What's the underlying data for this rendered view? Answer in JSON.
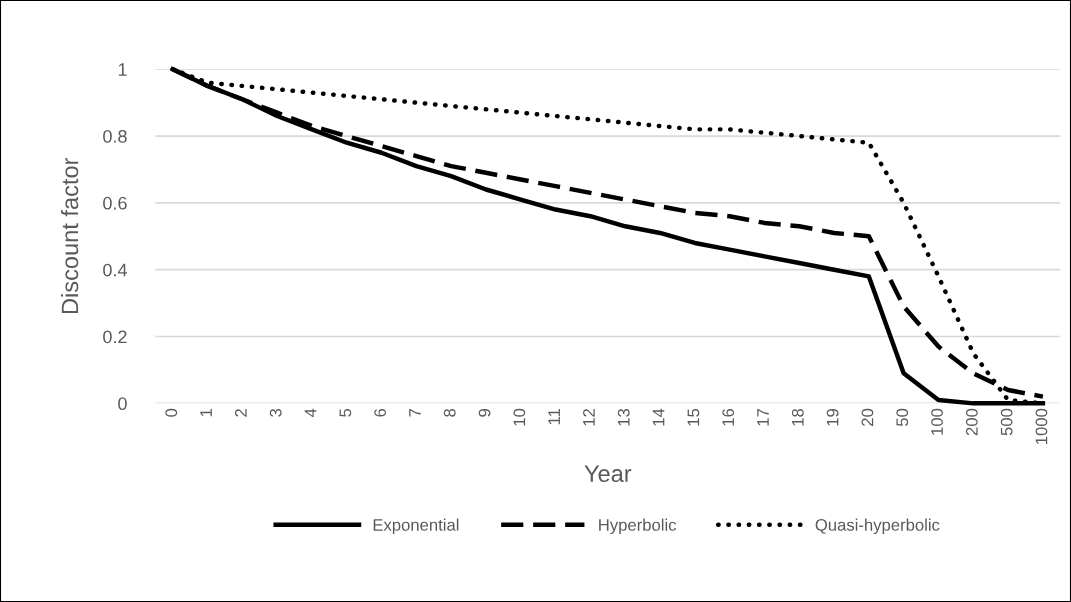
{
  "chart_data": {
    "type": "line",
    "xlabel": "Year",
    "ylabel": "Discount factor",
    "categories": [
      "0",
      "1",
      "2",
      "3",
      "4",
      "5",
      "6",
      "7",
      "8",
      "9",
      "10",
      "11",
      "12",
      "13",
      "14",
      "15",
      "16",
      "17",
      "18",
      "19",
      "20",
      "50",
      "100",
      "200",
      "500",
      "1000"
    ],
    "series": [
      {
        "name": "Exponential",
        "color": "#000000",
        "line_style": "solid",
        "values": [
          1,
          0.95,
          0.91,
          0.86,
          0.82,
          0.78,
          0.75,
          0.71,
          0.68,
          0.64,
          0.61,
          0.58,
          0.56,
          0.53,
          0.51,
          0.48,
          0.46,
          0.44,
          0.42,
          0.4,
          0.38,
          0.09,
          0.01,
          0,
          0,
          0
        ]
      },
      {
        "name": "Hyperbolic",
        "color": "#000000",
        "line_style": "dashed",
        "values": [
          1,
          0.95,
          0.91,
          0.87,
          0.83,
          0.8,
          0.77,
          0.74,
          0.71,
          0.69,
          0.67,
          0.65,
          0.63,
          0.61,
          0.59,
          0.57,
          0.56,
          0.54,
          0.53,
          0.51,
          0.5,
          0.29,
          0.17,
          0.09,
          0.04,
          0.02
        ]
      },
      {
        "name": "Quasi-hyperbolic",
        "color": "#000000",
        "line_style": "dotted",
        "values": [
          1,
          0.96,
          0.95,
          0.94,
          0.93,
          0.92,
          0.91,
          0.9,
          0.89,
          0.88,
          0.87,
          0.86,
          0.85,
          0.84,
          0.83,
          0.82,
          0.82,
          0.81,
          0.8,
          0.79,
          0.78,
          0.6,
          0.38,
          0.15,
          0.01,
          0
        ]
      }
    ],
    "ylim": [
      0,
      1
    ],
    "yticks": [
      0,
      0.2,
      0.4,
      0.6,
      0.8,
      1
    ],
    "grid": "y",
    "legend": "bottom",
    "marker": "none"
  }
}
